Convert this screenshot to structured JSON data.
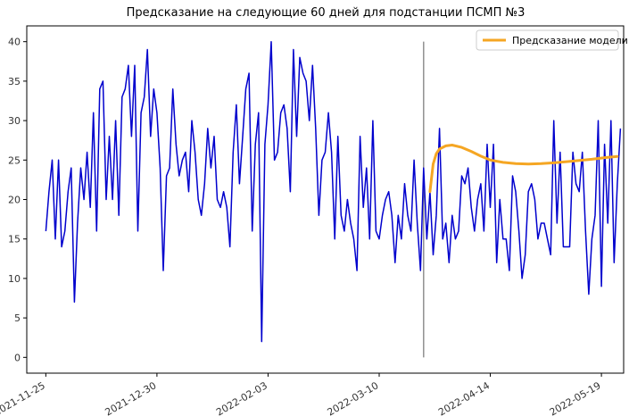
{
  "chart_data": {
    "type": "line",
    "title": "Предсказание на следующие 60 дней для подстанции ПСМП №3",
    "xlabel": "",
    "ylabel": "",
    "xlim": [
      "2021-11-19",
      "2022-05-26"
    ],
    "ylim": [
      -2,
      42
    ],
    "grid": false,
    "legend_position": "top-right",
    "x_ticks": [
      "2021-11-25",
      "2021-12-30",
      "2022-02-03",
      "2022-03-10",
      "2022-04-14",
      "2022-05-19"
    ],
    "y_ticks": [
      0,
      5,
      10,
      15,
      20,
      25,
      30,
      35,
      40
    ],
    "vline": {
      "x": "2022-03-24",
      "ymin": 0,
      "ymax": 40,
      "color": "#808080"
    },
    "series": [
      {
        "name": "",
        "color": "#0000cd",
        "start_date": "2021-11-25",
        "values": [
          16,
          21,
          25,
          15,
          25,
          14,
          16,
          21,
          24,
          7,
          17,
          24,
          20,
          26,
          19,
          31,
          16,
          34,
          35,
          20,
          28,
          20,
          30,
          18,
          33,
          34,
          37,
          28,
          37,
          16,
          31,
          33,
          39,
          28,
          34,
          31,
          24,
          11,
          23,
          24,
          34,
          27,
          23,
          25,
          26,
          21,
          30,
          26,
          20,
          18,
          22,
          29,
          24,
          28,
          20,
          19,
          21,
          19,
          14,
          26,
          32,
          22,
          28,
          34,
          36,
          16,
          27,
          31,
          2,
          27,
          32,
          40,
          25,
          26,
          31,
          32,
          29,
          21,
          39,
          28,
          38,
          36,
          35,
          30,
          37,
          29,
          18,
          25,
          26,
          31,
          26,
          15,
          28,
          18,
          16,
          20,
          17,
          15,
          11,
          28,
          19,
          24,
          15,
          30,
          16,
          15,
          18,
          20,
          21,
          18,
          12,
          18,
          15,
          22,
          18,
          16,
          25,
          17,
          11,
          24,
          15,
          21,
          13,
          18,
          29,
          15,
          17,
          12,
          18,
          15,
          16,
          23,
          22,
          24,
          19,
          16,
          20,
          22,
          16,
          27,
          19,
          27,
          12,
          20,
          15,
          15,
          11,
          23,
          21,
          16,
          10,
          13,
          21,
          22,
          20,
          15,
          17,
          17,
          15,
          13,
          30,
          17,
          26,
          14,
          14,
          14,
          26,
          22,
          21,
          26,
          16,
          8,
          15,
          18,
          30,
          9,
          27,
          17,
          30,
          12,
          22,
          29
        ]
      },
      {
        "name": "Предсказание модели",
        "color": "#f5a623",
        "x": [
          "2022-03-26",
          "2022-03-27",
          "2022-03-28",
          "2022-03-29",
          "2022-03-31",
          "2022-04-02",
          "2022-04-05",
          "2022-04-08",
          "2022-04-11",
          "2022-04-14",
          "2022-04-18",
          "2022-04-22",
          "2022-04-26",
          "2022-04-30",
          "2022-05-04",
          "2022-05-08",
          "2022-05-12",
          "2022-05-16",
          "2022-05-20",
          "2022-05-24"
        ],
        "values": [
          21,
          24.5,
          25.8,
          26.4,
          26.8,
          26.9,
          26.6,
          26.1,
          25.5,
          25.0,
          24.7,
          24.55,
          24.5,
          24.55,
          24.65,
          24.8,
          24.95,
          25.1,
          25.3,
          25.45
        ]
      }
    ]
  }
}
